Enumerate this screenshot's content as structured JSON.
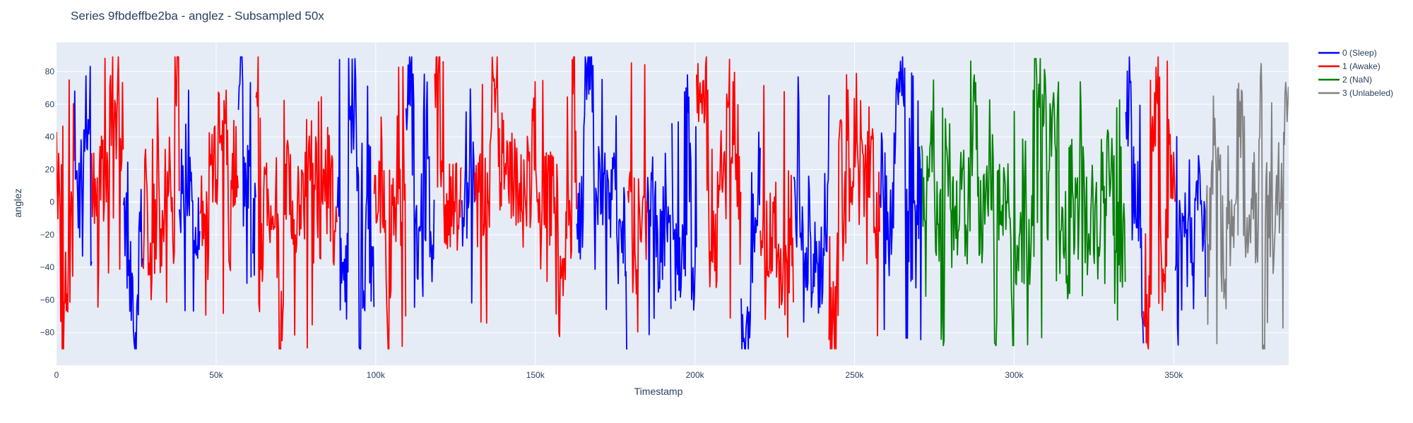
{
  "chart_data": {
    "type": "line",
    "title": "Series 9fbdeffbe2ba - anglez - Subsampled 50x",
    "xlabel": "Timestamp",
    "ylabel": "anglez",
    "xlim": [
      0,
      386000
    ],
    "ylim": [
      -100,
      98
    ],
    "x_ticks": [
      0,
      50000,
      100000,
      150000,
      200000,
      250000,
      300000,
      350000
    ],
    "x_tick_labels": [
      "0",
      "50k",
      "100k",
      "150k",
      "200k",
      "250k",
      "300k",
      "350k"
    ],
    "y_ticks": [
      -80,
      -60,
      -40,
      -20,
      0,
      20,
      40,
      60,
      80
    ],
    "y_tick_labels": [
      "−80",
      "−60",
      "−40",
      "−20",
      "0",
      "20",
      "40",
      "60",
      "80"
    ],
    "grid": true,
    "legend_position": "top-right",
    "series": [
      {
        "name": "0 (Sleep)",
        "color": "#0000ff",
        "segments": [
          [
            5500,
            11000
          ],
          [
            21000,
            27000
          ],
          [
            38500,
            45000
          ],
          [
            57000,
            61000
          ],
          [
            61500,
            62500
          ],
          [
            88000,
            99500
          ],
          [
            109500,
            118500
          ],
          [
            127000,
            131000
          ],
          [
            163000,
            179000
          ],
          [
            185000,
            192500
          ],
          [
            192800,
            200500
          ],
          [
            214500,
            220500
          ],
          [
            231000,
            242000
          ],
          [
            258000,
            271000
          ],
          [
            335000,
            340500
          ],
          [
            350500,
            360000
          ]
        ],
        "amplitude": [
          -90,
          89
        ]
      },
      {
        "name": "1 (Awake)",
        "color": "#ff0000",
        "segments": [
          [
            0,
            5500
          ],
          [
            11000,
            21000
          ],
          [
            27000,
            38500
          ],
          [
            45000,
            57000
          ],
          [
            62500,
            88000
          ],
          [
            99500,
            109500
          ],
          [
            118500,
            127000
          ],
          [
            131000,
            163000
          ],
          [
            179000,
            185000
          ],
          [
            200500,
            214500
          ],
          [
            220500,
            231000
          ],
          [
            242000,
            258000
          ],
          [
            340500,
            350500
          ]
        ],
        "amplitude": [
          -90,
          89
        ]
      },
      {
        "name": "2 (NaN)",
        "color": "#008000",
        "segments": [
          [
            271000,
            335000
          ]
        ],
        "amplitude": [
          -88,
          88
        ]
      },
      {
        "name": "3 (Unlabeled)",
        "color": "#808080",
        "segments": [
          [
            360000,
            386000
          ]
        ],
        "amplitude": [
          -90,
          85
        ]
      }
    ]
  }
}
